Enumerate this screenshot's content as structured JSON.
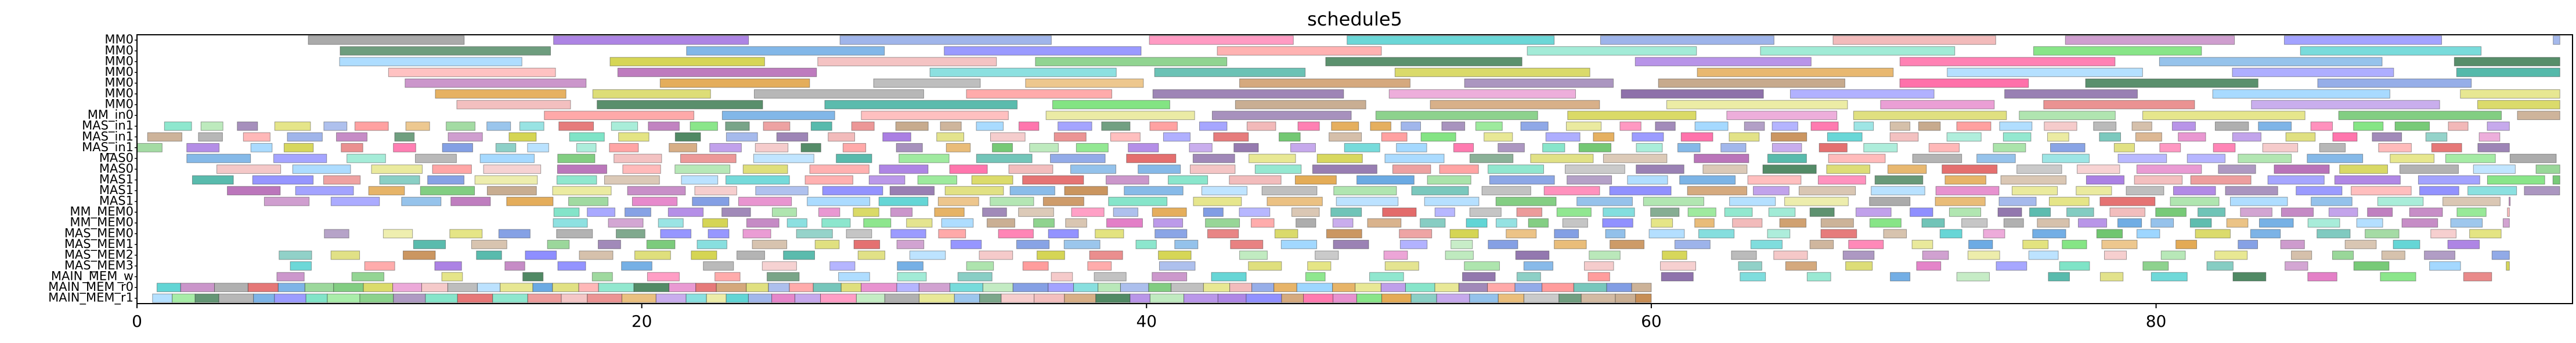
{
  "chart_data": {
    "type": "gantt",
    "title": "schedule5",
    "xlabel": "",
    "ylabel": "",
    "xlim": [
      0,
      96.5
    ],
    "xticks": [
      0,
      20,
      40,
      60,
      80
    ],
    "xtick_labels": [
      "0",
      "20",
      "40",
      "60",
      "80"
    ],
    "grid": false,
    "legend": "none",
    "rows": [
      "MM0",
      "MM0",
      "MM0",
      "MM0",
      "MM0",
      "MM0",
      "MM0",
      "MM_in0",
      "MAS_in1",
      "MAS_in1",
      "MAS_in1",
      "MAS0",
      "MAS0",
      "MAS1",
      "MAS1",
      "MAS1",
      "MM_MEM0",
      "MM_MEM0",
      "MAS_MEM0",
      "MAS_MEM1",
      "MAS_MEM2",
      "MAS_MEM3",
      "MAIN_MEM_w",
      "MAIN_MEM_r0",
      "MAIN_MEM_r1"
    ],
    "row_labels_printed": [
      "MM0",
      "MM0",
      "MM0",
      "MM0",
      "MM0",
      "MM0",
      "MM0",
      "MM_in0",
      "MAS_in1",
      "MAS_in1",
      "MAS_in1",
      "MAS0",
      "MAS0",
      "MAS1",
      "MAS1",
      "MAS1",
      "MM_MEM0",
      "MM_MEM0",
      "MAS_MEM0",
      "MAS_MEM1",
      "MAS_MEM2",
      "MAS_MEM3",
      "MAIN_MEM_w",
      "MAIN_MEM_r0",
      "MAIN_MEM_r1"
    ],
    "palette": [
      "#6fe0c0",
      "#e05a5a",
      "#5aa0e0",
      "#e0a040",
      "#a070e0",
      "#70e070",
      "#e070c0",
      "#3a7a50",
      "#c0a080",
      "#8080ff",
      "#ff9090",
      "#90d0ff",
      "#d0d040",
      "#40b0a0",
      "#ff60a0",
      "#a0a0a0",
      "#60c060",
      "#c08040",
      "#7090e0",
      "#e0e070",
      "#b060b0",
      "#50d0d0",
      "#f0b0b0",
      "#8060a0",
      "#a0e0a0"
    ],
    "bar_height": 0.8
  }
}
